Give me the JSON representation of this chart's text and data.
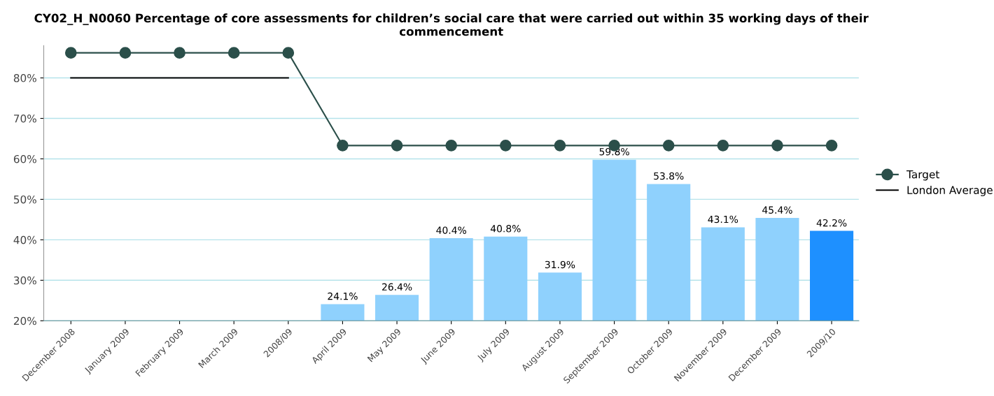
{
  "chart_data": {
    "type": "bar",
    "title": "CY02_H_N0060 Percentage of core assessments for children’s social care that were carried out within 35 working days of their commencement",
    "categories": [
      "December 2008",
      "January 2009",
      "February 2009",
      "March 2009",
      "2008/09",
      "April 2009",
      "May 2009",
      "June 2009",
      "July 2009",
      "August 2009",
      "September 2009",
      "October 2009",
      "November 2009",
      "December 2009",
      "2009/10"
    ],
    "series": [
      {
        "colors": [
          "#8fd1fd",
          "#8fd1fd",
          "#8fd1fd",
          "#8fd1fd",
          "#8fd1fd",
          "#8fd1fd",
          "#8fd1fd",
          "#8fd1fd",
          "#8fd1fd",
          "#8fd1fd",
          "#8fd1fd",
          "#8fd1fd",
          "#8fd1fd",
          "#8fd1fd",
          "#1e90ff"
        ],
        "values": [
          null,
          null,
          null,
          null,
          null,
          24.1,
          26.4,
          40.4,
          40.8,
          31.9,
          59.8,
          53.8,
          43.1,
          45.4,
          42.2
        ],
        "value_labels": [
          null,
          null,
          null,
          null,
          null,
          "24.1%",
          "26.4%",
          "40.4%",
          "40.8%",
          "31.9%",
          "59.8%",
          "53.8%",
          "43.1%",
          "45.4%",
          "42.2%"
        ]
      },
      {
        "type": "line",
        "name": "Target",
        "color": "#2b4f4a",
        "marker": "circle",
        "values": [
          86.2,
          86.2,
          86.2,
          86.2,
          86.2,
          63.3,
          63.3,
          63.3,
          63.3,
          63.3,
          63.3,
          63.3,
          63.3,
          63.3,
          63.3
        ]
      },
      {
        "type": "line",
        "name": "London Average",
        "color": "#000000",
        "marker": "none",
        "values": [
          80,
          80,
          80,
          80,
          80,
          null,
          null,
          null,
          null,
          null,
          null,
          null,
          null,
          null,
          null
        ]
      }
    ],
    "ylim": [
      20,
      88
    ],
    "yticks": [
      {
        "value": 20,
        "label": "20%"
      },
      {
        "value": 30,
        "label": "30%"
      },
      {
        "value": 40,
        "label": "40%"
      },
      {
        "value": 50,
        "label": "50%"
      },
      {
        "value": 60,
        "label": "60%"
      },
      {
        "value": 70,
        "label": "70%"
      },
      {
        "value": 80,
        "label": "80%"
      }
    ],
    "grid": "y",
    "legend": "right"
  }
}
